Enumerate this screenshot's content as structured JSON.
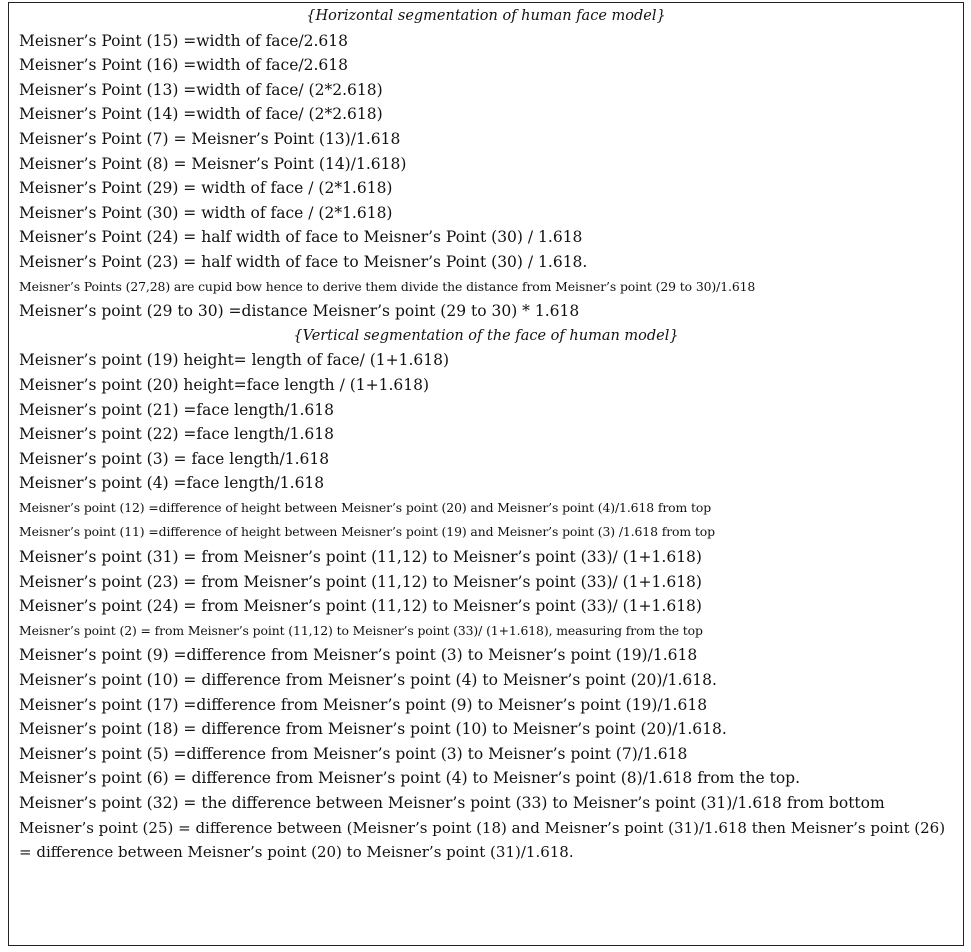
{
  "document": {
    "heading_horizontal": "{Horizontal segmentation of human face model}",
    "horizontal_lines": [
      {
        "text": "Meisner’s Point (15) =width of face/2.618",
        "size": "normal"
      },
      {
        "text": "Meisner’s Point (16) =width of face/2.618",
        "size": "normal"
      },
      {
        "text": "Meisner’s Point (13) =width of face/ (2*2.618)",
        "size": "normal"
      },
      {
        "text": "Meisner’s Point (14) =width of face/ (2*2.618)",
        "size": "normal"
      },
      {
        "text": "Meisner’s Point (7) = Meisner’s Point (13)/1.618",
        "size": "normal"
      },
      {
        "text": "Meisner’s Point (8) = Meisner’s Point (14)/1.618)",
        "size": "normal"
      },
      {
        "text": "Meisner’s Point (29) = width of face / (2*1.618)",
        "size": "normal"
      },
      {
        "text": "Meisner’s Point (30) = width of face / (2*1.618)",
        "size": "normal"
      },
      {
        "text": "Meisner’s Point (24) = half width of face to Meisner’s Point (30) / 1.618",
        "size": "normal"
      },
      {
        "text": "Meisner’s Point (23) = half width of face to Meisner’s Point (30) / 1.618.",
        "size": "normal"
      },
      {
        "text": "Meisner’s Points (27,28) are cupid bow hence to derive them divide the distance from Meisner’s point (29 to 30)/1.618",
        "size": "small"
      },
      {
        "text": "Meisner’s point (29 to 30) =distance Meisner’s point (29 to 30) * 1.618",
        "size": "normal"
      }
    ],
    "heading_vertical": "{Vertical segmentation of the face of human model}",
    "vertical_lines": [
      {
        "text": "Meisner’s point (19) height= length of face/ (1+1.618)",
        "size": "normal"
      },
      {
        "text": "Meisner’s point (20) height=face length / (1+1.618)",
        "size": "normal"
      },
      {
        "text": "Meisner’s point (21) =face length/1.618",
        "size": "normal"
      },
      {
        "text": "Meisner’s point (22) =face length/1.618",
        "size": "normal"
      },
      {
        "text": "Meisner’s point (3) = face length/1.618",
        "size": "normal"
      },
      {
        "text": "Meisner’s point (4) =face length/1.618",
        "size": "normal"
      },
      {
        "text": "Meisner’s point (12) =difference of height between Meisner’s point (20) and Meisner’s point (4)/1.618 from top",
        "size": "small"
      },
      {
        "text": "Meisner’s point (11) =difference of height between Meisner’s point (19) and Meisner’s point (3) /1.618 from top",
        "size": "small"
      },
      {
        "text": "Meisner’s point (31) = from Meisner’s point (11,12) to Meisner’s point (33)/ (1+1.618)",
        "size": "normal"
      },
      {
        "text": "Meisner’s point (23) = from Meisner’s point (11,12) to Meisner’s point (33)/ (1+1.618)",
        "size": "normal"
      },
      {
        "text": "Meisner’s point (24) = from Meisner’s point (11,12) to Meisner’s point (33)/ (1+1.618)",
        "size": "normal"
      },
      {
        "text": "Meisner’s point (2) = from Meisner’s point (11,12) to Meisner’s point (33)/ (1+1.618), measuring from the top",
        "size": "small"
      },
      {
        "text": "Meisner’s point (9) =difference from Meisner’s point (3) to Meisner’s point (19)/1.618",
        "size": "normal"
      },
      {
        "text": "Meisner’s point (10) = difference from Meisner’s point (4) to Meisner’s point (20)/1.618.",
        "size": "normal"
      },
      {
        "text": "Meisner’s point (17) =difference from Meisner’s point (9) to Meisner’s point (19)/1.618",
        "size": "normal"
      },
      {
        "text": "Meisner’s point (18) = difference from Meisner’s point (10) to Meisner’s point (20)/1.618.",
        "size": "normal"
      },
      {
        "text": "Meisner’s point (5) =difference from Meisner’s point (3) to Meisner’s point (7)/1.618",
        "size": "normal"
      },
      {
        "text": "Meisner’s point (6) = difference from Meisner’s point (4) to Meisner’s point (8)/1.618 from the top.",
        "size": "normal"
      },
      {
        "text": "Meisner’s point (32) = the difference between Meisner’s point (33) to Meisner’s point (31)/1.618 from bottom",
        "size": "normal"
      },
      {
        "text": "Meisner’s point (25) = difference between (Meisner’s point (18) and Meisner’s point (31)/1.618 then Meisner’s point (26) = difference between Meisner’s point (20) to Meisner’s point (31)/1.618.",
        "size": "wrap"
      }
    ]
  }
}
